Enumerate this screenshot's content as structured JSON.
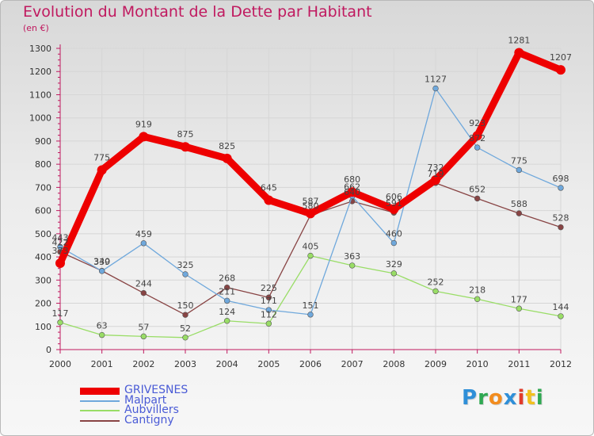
{
  "colors": {
    "title": "#c0195f",
    "axis": "#c0195f",
    "grid": "#d6d6d6",
    "legend_text": "#4a5bd6",
    "value_label": "#444444"
  },
  "chart_data": {
    "type": "line",
    "title": "Evolution du Montant de la Dette par Habitant",
    "subtitle": "(en €)",
    "xlabel": "",
    "ylabel": "",
    "x": [
      "2000",
      "2001",
      "2002",
      "2003",
      "2004",
      "2005",
      "2006",
      "2007",
      "2008",
      "2009",
      "2010",
      "2011",
      "2012"
    ],
    "ylim": [
      0,
      1300
    ],
    "yticks": [
      0,
      100,
      200,
      300,
      400,
      500,
      600,
      700,
      800,
      900,
      1000,
      1100,
      1200,
      1300
    ],
    "grid": true,
    "legend_position": "bottom-left",
    "series": [
      {
        "name": "GRIVESNES",
        "color": "#ee0000",
        "values": [
          373,
          775,
          919,
          875,
          825,
          645,
          587,
          680,
          606,
          732,
          923,
          1281,
          1207
        ]
      },
      {
        "name": "Malpart",
        "color": "#6fa8dc",
        "values": [
          443,
          339,
          459,
          325,
          211,
          171,
          151,
          662,
          460,
          1127,
          872,
          775,
          698
        ]
      },
      {
        "name": "Aubvillers",
        "color": "#99dd66",
        "values": [
          117,
          63,
          57,
          52,
          124,
          112,
          405,
          363,
          329,
          252,
          218,
          177,
          144
        ]
      },
      {
        "name": "Cantigny",
        "color": "#884444",
        "values": [
          422,
          340,
          244,
          150,
          268,
          225,
          580,
          640,
          591,
          719,
          652,
          588,
          528
        ]
      }
    ]
  },
  "logo": {
    "letters": [
      {
        "ch": "P",
        "color": "#2f8fd8"
      },
      {
        "ch": "r",
        "color": "#2fa852"
      },
      {
        "ch": "o",
        "color": "#f28c1e"
      },
      {
        "ch": "x",
        "color": "#2f8fd8"
      },
      {
        "ch": "i",
        "color": "#e23b2b"
      },
      {
        "ch": "t",
        "color": "#f2c01e"
      },
      {
        "ch": "i",
        "color": "#2fa852"
      }
    ]
  }
}
